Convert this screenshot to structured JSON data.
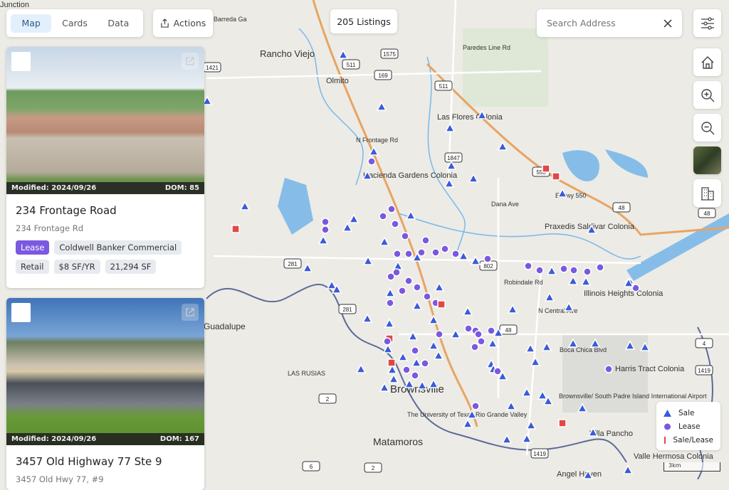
{
  "view_tabs": [
    {
      "label": "Map",
      "active": true
    },
    {
      "label": "Cards",
      "active": false
    },
    {
      "label": "Data",
      "active": false
    }
  ],
  "actions_label": "Actions",
  "listing_count": "205 Listings",
  "search": {
    "placeholder": "Search Address",
    "value": ""
  },
  "map_controls": [
    "filters-icon",
    "home-icon",
    "zoom-in-icon",
    "zoom-out-icon",
    "satellite-layer",
    "buildings-icon"
  ],
  "cards": [
    {
      "modified": "Modified: 2024/09/26",
      "dom": "DOM: 85",
      "title": "234 Frontage Road",
      "address": "234 Frontage Rd",
      "tags": [
        "Lease",
        "Coldwell Banker Commercial",
        "Retail",
        "$8 SF/YR",
        "21,294 SF"
      ]
    },
    {
      "modified": "Modified: 2024/09/26",
      "dom": "DOM: 167",
      "title": "3457 Old Highway 77 Ste 9",
      "address": "3457 Old Hwy 77, #9",
      "tags": []
    }
  ],
  "legend": [
    {
      "label": "Sale",
      "color": "#3b5bd9",
      "shape": "triangle"
    },
    {
      "label": "Lease",
      "color": "#7b58e0",
      "shape": "circle"
    },
    {
      "label": "Sale/Lease",
      "color": "#e04848",
      "shape": "square"
    }
  ],
  "scale": "3km",
  "map_labels": [
    "Junction",
    "Rancho Viejo",
    "Olmito",
    "Las Flores Colonia",
    "Hacienda Gardens Colonia",
    "Praxedis Saldivar Colonia",
    "Illinois Heights Colonia",
    "Guadalupe",
    "LAS RUSIAS",
    "Brownsville",
    "The University of Texas Rio Grande Valley",
    "Brownsville/ South Padre Island International Airport",
    "Harris Tract Colonia",
    "Matamoros",
    "Villa Pancho",
    "Valle Hermosa Colonia",
    "Angel Haven",
    "Boca Chica Blvd",
    "Dana Ave",
    "N Central Ave",
    "Robindale Rd",
    "Paredes Line Rd",
    "Barreda Ga",
    "N Frontage Rd",
    "E Hwy 550"
  ],
  "road_shields": [
    "1421",
    "511",
    "1575",
    "169",
    "511",
    "1847",
    "550",
    "48",
    "281",
    "802",
    "281",
    "48",
    "2",
    "1419",
    "6",
    "2",
    "1419",
    "4",
    "48"
  ]
}
